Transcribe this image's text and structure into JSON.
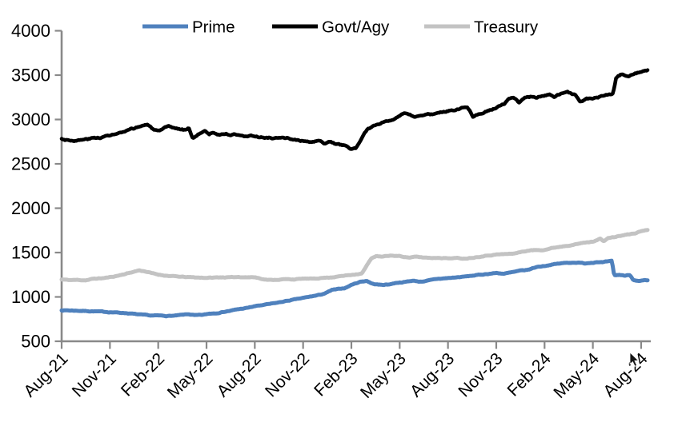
{
  "chart_data": {
    "type": "line",
    "title": "",
    "x_description": "month offset from Aug-2021 (0 = Aug-21, 36 = Aug-24); values are fund asset levels",
    "x_tick_labels": [
      "Aug-21",
      "Nov-21",
      "Feb-22",
      "May-22",
      "Aug-22",
      "Nov-22",
      "Feb-23",
      "May-23",
      "Aug-23",
      "Nov-23",
      "Feb-24",
      "May-24",
      "Aug-24"
    ],
    "x_tick_months": [
      0,
      3,
      6,
      9,
      12,
      15,
      18,
      21,
      24,
      27,
      30,
      33,
      36
    ],
    "ylim": [
      500,
      4000
    ],
    "y_ticks": [
      500,
      1000,
      1500,
      2000,
      2500,
      3000,
      3500,
      4000
    ],
    "grid": false,
    "legend_position": "top",
    "series": [
      {
        "name": "Prime",
        "color": "#4F81BD",
        "points": [
          [
            0,
            850
          ],
          [
            1,
            845
          ],
          [
            2,
            838
          ],
          [
            3,
            829
          ],
          [
            4,
            818
          ],
          [
            5,
            798
          ],
          [
            5.5,
            790
          ],
          [
            6,
            790
          ],
          [
            6.5,
            786
          ],
          [
            7,
            788
          ],
          [
            7.5,
            797
          ],
          [
            7.9,
            805
          ],
          [
            8.3,
            792
          ],
          [
            8.8,
            798
          ],
          [
            9.2,
            812
          ],
          [
            9.6,
            818
          ],
          [
            10,
            830
          ],
          [
            10.5,
            845
          ],
          [
            11,
            862
          ],
          [
            11.5,
            875
          ],
          [
            12,
            895
          ],
          [
            12.5,
            908
          ],
          [
            13,
            922
          ],
          [
            13.5,
            938
          ],
          [
            14,
            955
          ],
          [
            14.5,
            972
          ],
          [
            15,
            988
          ],
          [
            15.5,
            1005
          ],
          [
            16,
            1022
          ],
          [
            16.4,
            1042
          ],
          [
            16.8,
            1078
          ],
          [
            17.2,
            1088
          ],
          [
            17.6,
            1100
          ],
          [
            18.05,
            1140
          ],
          [
            18.55,
            1171
          ],
          [
            18.95,
            1182
          ],
          [
            19.3,
            1148
          ],
          [
            19.8,
            1136
          ],
          [
            20.3,
            1140
          ],
          [
            20.8,
            1160
          ],
          [
            21.3,
            1168
          ],
          [
            21.8,
            1183
          ],
          [
            22.3,
            1172
          ],
          [
            22.8,
            1185
          ],
          [
            23.3,
            1202
          ],
          [
            24,
            1212
          ],
          [
            25,
            1228
          ],
          [
            26,
            1250
          ],
          [
            27,
            1270
          ],
          [
            27.5,
            1262
          ],
          [
            28,
            1278
          ],
          [
            28.5,
            1295
          ],
          [
            29,
            1306
          ],
          [
            29.5,
            1338
          ],
          [
            30,
            1350
          ],
          [
            30.5,
            1366
          ],
          [
            31,
            1378
          ],
          [
            31.5,
            1386
          ],
          [
            32,
            1388
          ],
          [
            32.5,
            1378
          ],
          [
            33,
            1388
          ],
          [
            33.3,
            1396
          ],
          [
            33.6,
            1390
          ],
          [
            33.9,
            1398
          ],
          [
            34.18,
            1403
          ],
          [
            34.32,
            1242
          ],
          [
            34.7,
            1248
          ],
          [
            35,
            1240
          ],
          [
            35.3,
            1248
          ],
          [
            35.5,
            1196
          ],
          [
            35.9,
            1178
          ],
          [
            36.2,
            1186
          ],
          [
            36.4,
            1182
          ]
        ]
      },
      {
        "name": "Govt/Agy",
        "color": "#000000",
        "points": [
          [
            0,
            2780
          ],
          [
            0.5,
            2768
          ],
          [
            1,
            2762
          ],
          [
            1.5,
            2776
          ],
          [
            2,
            2790
          ],
          [
            2.5,
            2800
          ],
          [
            3,
            2822
          ],
          [
            3.5,
            2840
          ],
          [
            4,
            2862
          ],
          [
            4.5,
            2900
          ],
          [
            5,
            2930
          ],
          [
            5.3,
            2942
          ],
          [
            5.6,
            2900
          ],
          [
            6.1,
            2862
          ],
          [
            6.6,
            2920
          ],
          [
            7.1,
            2900
          ],
          [
            7.6,
            2885
          ],
          [
            7.9,
            2902
          ],
          [
            8.15,
            2795
          ],
          [
            8.4,
            2812
          ],
          [
            8.65,
            2855
          ],
          [
            8.9,
            2872
          ],
          [
            9.15,
            2830
          ],
          [
            9.4,
            2855
          ],
          [
            9.7,
            2830
          ],
          [
            10.1,
            2838
          ],
          [
            10.6,
            2830
          ],
          [
            11.1,
            2832
          ],
          [
            11.6,
            2812
          ],
          [
            12.1,
            2812
          ],
          [
            12.6,
            2795
          ],
          [
            13.1,
            2795
          ],
          [
            13.6,
            2786
          ],
          [
            14.1,
            2786
          ],
          [
            14.6,
            2768
          ],
          [
            15.1,
            2750
          ],
          [
            15.5,
            2742
          ],
          [
            15.9,
            2758
          ],
          [
            16.3,
            2732
          ],
          [
            16.7,
            2748
          ],
          [
            17,
            2724
          ],
          [
            17.5,
            2708
          ],
          [
            18,
            2668
          ],
          [
            18.3,
            2682
          ],
          [
            18.6,
            2762
          ],
          [
            19,
            2892
          ],
          [
            19.5,
            2935
          ],
          [
            20,
            2975
          ],
          [
            20.5,
            3002
          ],
          [
            21,
            3040
          ],
          [
            21.3,
            3062
          ],
          [
            21.7,
            3042
          ],
          [
            22,
            3028
          ],
          [
            22.5,
            3056
          ],
          [
            23,
            3058
          ],
          [
            23.5,
            3080
          ],
          [
            24,
            3095
          ],
          [
            24.6,
            3120
          ],
          [
            25.2,
            3150
          ],
          [
            25.55,
            3040
          ],
          [
            26,
            3072
          ],
          [
            26.5,
            3105
          ],
          [
            27,
            3130
          ],
          [
            27.5,
            3175
          ],
          [
            27.8,
            3230
          ],
          [
            28.1,
            3248
          ],
          [
            28.4,
            3195
          ],
          [
            28.8,
            3248
          ],
          [
            29.2,
            3262
          ],
          [
            29.5,
            3240
          ],
          [
            29.9,
            3272
          ],
          [
            30.3,
            3290
          ],
          [
            30.6,
            3252
          ],
          [
            31,
            3292
          ],
          [
            31.4,
            3312
          ],
          [
            31.9,
            3272
          ],
          [
            32.2,
            3205
          ],
          [
            32.6,
            3232
          ],
          [
            33.1,
            3242
          ],
          [
            33.6,
            3262
          ],
          [
            34,
            3282
          ],
          [
            34.25,
            3292
          ],
          [
            34.45,
            3470
          ],
          [
            34.8,
            3512
          ],
          [
            35.2,
            3496
          ],
          [
            35.6,
            3520
          ],
          [
            36,
            3532
          ],
          [
            36.4,
            3548
          ]
        ]
      },
      {
        "name": "Treasury",
        "color": "#C3C3C3",
        "points": [
          [
            0,
            1196
          ],
          [
            0.5,
            1190
          ],
          [
            1,
            1192
          ],
          [
            1.5,
            1188
          ],
          [
            2,
            1205
          ],
          [
            2.5,
            1210
          ],
          [
            3,
            1222
          ],
          [
            3.5,
            1240
          ],
          [
            4,
            1262
          ],
          [
            4.4,
            1280
          ],
          [
            4.8,
            1300
          ],
          [
            5.2,
            1288
          ],
          [
            5.6,
            1268
          ],
          [
            6,
            1252
          ],
          [
            6.5,
            1240
          ],
          [
            7,
            1232
          ],
          [
            7.5,
            1226
          ],
          [
            8,
            1222
          ],
          [
            8.5,
            1218
          ],
          [
            9,
            1216
          ],
          [
            9.5,
            1218
          ],
          [
            10,
            1222
          ],
          [
            10.5,
            1220
          ],
          [
            11,
            1226
          ],
          [
            11.5,
            1222
          ],
          [
            12,
            1222
          ],
          [
            12.6,
            1198
          ],
          [
            13,
            1190
          ],
          [
            13.5,
            1196
          ],
          [
            14,
            1200
          ],
          [
            14.5,
            1198
          ],
          [
            15,
            1206
          ],
          [
            15.5,
            1204
          ],
          [
            16,
            1212
          ],
          [
            16.5,
            1218
          ],
          [
            17,
            1226
          ],
          [
            17.5,
            1238
          ],
          [
            18,
            1250
          ],
          [
            18.65,
            1264
          ],
          [
            19.25,
            1438
          ],
          [
            19.55,
            1460
          ],
          [
            19.9,
            1452
          ],
          [
            20.2,
            1460
          ],
          [
            20.5,
            1466
          ],
          [
            21,
            1460
          ],
          [
            21.6,
            1444
          ],
          [
            22,
            1452
          ],
          [
            22.5,
            1444
          ],
          [
            23,
            1440
          ],
          [
            23.5,
            1442
          ],
          [
            24,
            1436
          ],
          [
            24.5,
            1438
          ],
          [
            25,
            1433
          ],
          [
            25.5,
            1442
          ],
          [
            26,
            1456
          ],
          [
            26.5,
            1468
          ],
          [
            27,
            1478
          ],
          [
            27.5,
            1482
          ],
          [
            28,
            1487
          ],
          [
            28.5,
            1505
          ],
          [
            29,
            1523
          ],
          [
            29.5,
            1528
          ],
          [
            30,
            1532
          ],
          [
            30.5,
            1552
          ],
          [
            31,
            1568
          ],
          [
            31.5,
            1582
          ],
          [
            32,
            1595
          ],
          [
            32.5,
            1613
          ],
          [
            33,
            1622
          ],
          [
            33.2,
            1640
          ],
          [
            33.45,
            1658
          ],
          [
            33.7,
            1624
          ],
          [
            33.95,
            1665
          ],
          [
            34.3,
            1672
          ],
          [
            34.6,
            1685
          ],
          [
            35.1,
            1702
          ],
          [
            35.6,
            1716
          ],
          [
            36,
            1742
          ],
          [
            36.4,
            1757
          ]
        ]
      }
    ]
  },
  "legend": {
    "items": [
      "Prime",
      "Govt/Agy",
      "Treasury"
    ]
  },
  "style": {
    "accent_blue": "#4F81BD",
    "series_black": "#000000",
    "series_gray": "#C3C3C3",
    "axis_color": "#898989",
    "text_color": "#000000",
    "background": "#FFFFFF"
  }
}
